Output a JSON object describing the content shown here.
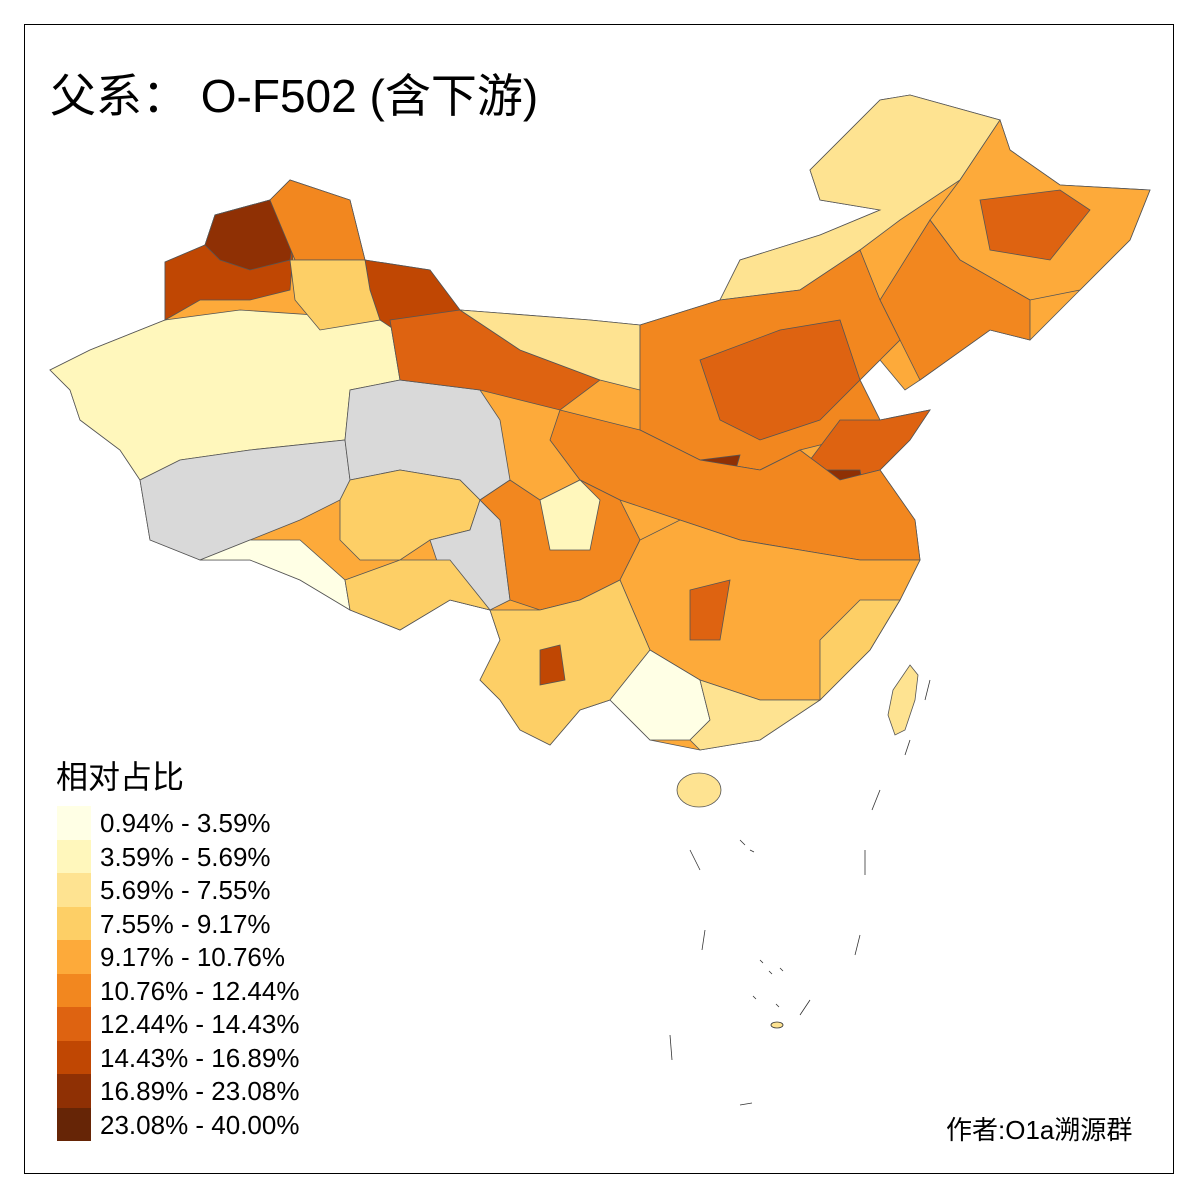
{
  "title": "父系： O-F502 (含下游)",
  "legend": {
    "title": "相对占比",
    "classes": [
      {
        "label": "0.94% - 3.59%",
        "color": "#FFFFE5"
      },
      {
        "label": "3.59% - 5.69%",
        "color": "#FFF7BC"
      },
      {
        "label": "5.69% - 7.55%",
        "color": "#FEE391"
      },
      {
        "label": "7.55% - 9.17%",
        "color": "#FDCF66"
      },
      {
        "label": "9.17% - 10.76%",
        "color": "#FDAA3A"
      },
      {
        "label": "10.76% - 12.44%",
        "color": "#F2871F"
      },
      {
        "label": "12.44% - 14.43%",
        "color": "#DE6311"
      },
      {
        "label": "14.43% - 16.89%",
        "color": "#C04703"
      },
      {
        "label": "16.89% - 23.08%",
        "color": "#8F3004"
      },
      {
        "label": "23.08% - 40.00%",
        "color": "#662506"
      }
    ],
    "no_data_color": "#D9D9D9"
  },
  "author": "作者:O1a溯源群"
}
